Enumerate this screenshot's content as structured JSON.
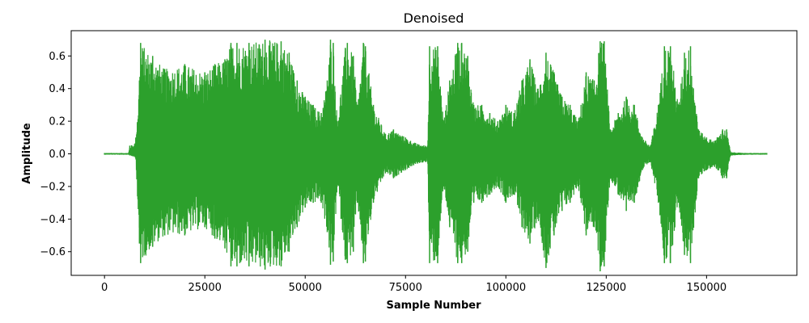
{
  "chart_data": {
    "type": "line",
    "title": "Denoised",
    "xlabel": "Sample Number",
    "ylabel": "Amplitude",
    "xlim": [
      -8300,
      172500
    ],
    "ylim": [
      -0.745,
      0.755
    ],
    "xticks": [
      0,
      25000,
      50000,
      75000,
      100000,
      125000,
      150000
    ],
    "xtick_labels": [
      "0",
      "25000",
      "50000",
      "75000",
      "100000",
      "125000",
      "150000"
    ],
    "yticks": [
      -0.6,
      -0.4,
      -0.2,
      0.0,
      0.2,
      0.4,
      0.6
    ],
    "ytick_labels": [
      "−0.6",
      "−0.4",
      "−0.2",
      "0.0",
      "0.2",
      "0.4",
      "0.6"
    ],
    "grid": false,
    "line_color": "#2ca02c",
    "series": [
      {
        "x": [
          0,
          6000,
          6300,
          7500,
          7800,
          8700,
          9000,
          12000,
          15000,
          20000,
          25000,
          27500,
          30000,
          31500,
          33000,
          36000,
          40000,
          44000,
          46000,
          48000,
          50000,
          52000,
          54000,
          55500,
          56300,
          57000,
          58000,
          60000,
          60500,
          62000,
          63000,
          64500,
          65000,
          67000,
          70000,
          72000,
          75000,
          78000,
          80500,
          81000,
          83000,
          84500,
          86000,
          88000,
          89000,
          90500,
          92000,
          94000,
          96000,
          98000,
          100000,
          102000,
          104000,
          106000,
          108000,
          110000,
          112000,
          114000,
          116000,
          118000,
          120000,
          122000,
          123500,
          124500,
          126000,
          128000,
          130000,
          132000,
          134000,
          136000,
          138000,
          139500,
          141000,
          143000,
          144500,
          146000,
          148000,
          150000,
          152000,
          154000,
          155000,
          156000,
          160000,
          165000
        ],
        "upper": [
          0.005,
          0.005,
          0.05,
          0.06,
          0.1,
          0.45,
          0.68,
          0.6,
          0.52,
          0.55,
          0.5,
          0.55,
          0.58,
          0.68,
          0.68,
          0.68,
          0.7,
          0.69,
          0.62,
          0.45,
          0.35,
          0.3,
          0.25,
          0.45,
          0.7,
          0.68,
          0.2,
          0.65,
          0.68,
          0.6,
          0.3,
          0.68,
          0.66,
          0.3,
          0.12,
          0.15,
          0.1,
          0.06,
          0.05,
          0.66,
          0.66,
          0.2,
          0.45,
          0.68,
          0.68,
          0.6,
          0.3,
          0.3,
          0.25,
          0.2,
          0.3,
          0.25,
          0.45,
          0.58,
          0.4,
          0.62,
          0.5,
          0.35,
          0.3,
          0.2,
          0.5,
          0.45,
          0.69,
          0.69,
          0.15,
          0.25,
          0.35,
          0.3,
          0.1,
          0.05,
          0.3,
          0.66,
          0.66,
          0.3,
          0.62,
          0.66,
          0.15,
          0.1,
          0.08,
          0.15,
          0.15,
          0.01,
          0.005,
          0.005
        ],
        "lower": [
          -0.005,
          -0.005,
          -0.01,
          -0.02,
          -0.03,
          -0.55,
          -0.67,
          -0.57,
          -0.5,
          -0.5,
          -0.45,
          -0.52,
          -0.58,
          -0.69,
          -0.69,
          -0.69,
          -0.71,
          -0.69,
          -0.6,
          -0.45,
          -0.33,
          -0.3,
          -0.3,
          -0.48,
          -0.68,
          -0.66,
          -0.2,
          -0.65,
          -0.67,
          -0.6,
          -0.3,
          -0.67,
          -0.66,
          -0.3,
          -0.12,
          -0.15,
          -0.1,
          -0.06,
          -0.05,
          -0.67,
          -0.67,
          -0.2,
          -0.45,
          -0.67,
          -0.67,
          -0.6,
          -0.3,
          -0.3,
          -0.25,
          -0.2,
          -0.3,
          -0.25,
          -0.45,
          -0.55,
          -0.4,
          -0.7,
          -0.5,
          -0.35,
          -0.3,
          -0.2,
          -0.5,
          -0.45,
          -0.72,
          -0.69,
          -0.15,
          -0.25,
          -0.35,
          -0.3,
          -0.1,
          -0.05,
          -0.3,
          -0.67,
          -0.67,
          -0.3,
          -0.62,
          -0.67,
          -0.15,
          -0.1,
          -0.08,
          -0.15,
          -0.15,
          -0.01,
          -0.005,
          -0.005
        ]
      }
    ]
  }
}
